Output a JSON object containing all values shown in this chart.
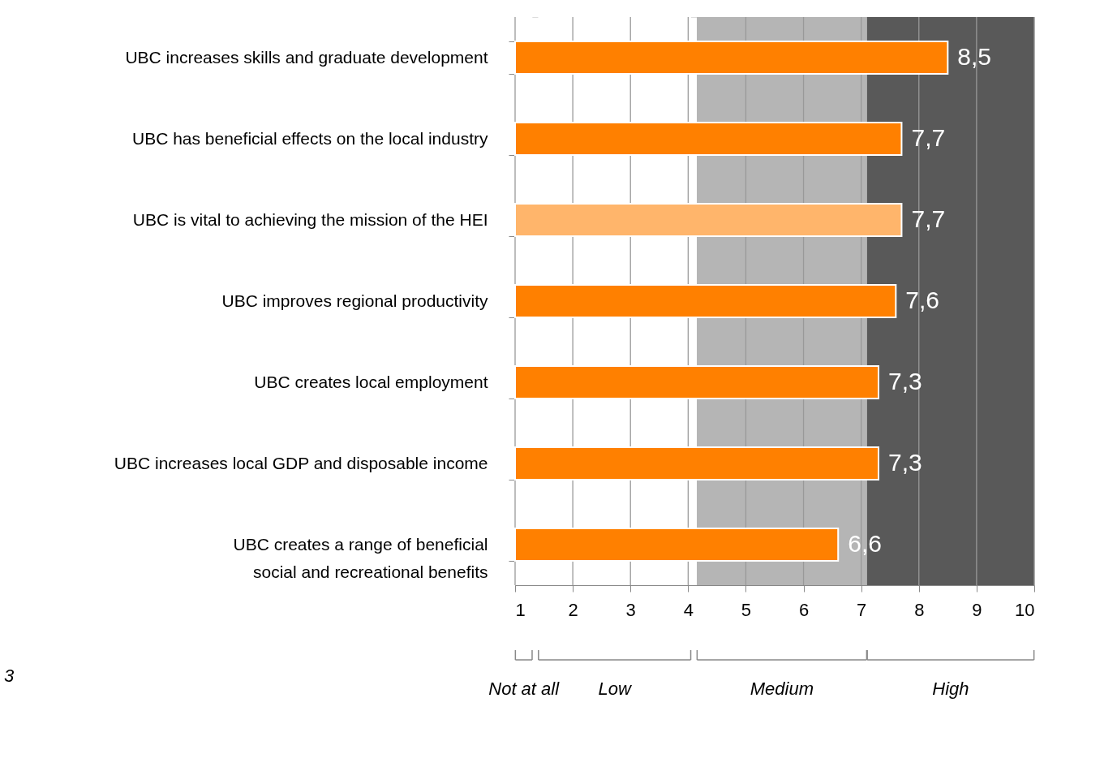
{
  "chart_data": {
    "type": "bar",
    "orientation": "horizontal",
    "categories": [
      "UBC increases skills and graduate development",
      "UBC has beneficial effects on the local industry",
      "UBC is vital to achieving the mission of the HEI",
      "UBC improves regional productivity",
      "UBC creates local employment",
      "UBC increases local GDP and disposable income",
      "UBC creates a range of beneficial social and recreational benefits"
    ],
    "values": [
      8.5,
      7.7,
      7.7,
      7.6,
      7.3,
      7.3,
      6.6
    ],
    "colors": [
      "#ff8000",
      "#ff8000",
      "#ffb56b",
      "#ff8000",
      "#ff8000",
      "#ff8000",
      "#ff8000"
    ],
    "value_labels": [
      "8,5",
      "7,7",
      "7,7",
      "7,6",
      "7,3",
      "7,3",
      "6,6"
    ],
    "xlim": [
      1,
      10
    ],
    "xticks": [
      1,
      2,
      3,
      4,
      5,
      6,
      7,
      8,
      9,
      10
    ],
    "grid": "x",
    "bands": [
      {
        "axis": "x",
        "from": 1,
        "to": 1.3,
        "color": "#ffffff"
      },
      {
        "axis": "x",
        "from": 1.4,
        "to": 4.05,
        "color": "#ffffff"
      },
      {
        "axis": "x",
        "from": 4.15,
        "to": 7.1,
        "color": "#b5b5b5"
      },
      {
        "axis": "x",
        "from": 7.1,
        "to": 10,
        "color": "#595959"
      }
    ],
    "annotations": [
      "Not at all",
      "Low",
      "Medium",
      "High",
      "3"
    ]
  }
}
